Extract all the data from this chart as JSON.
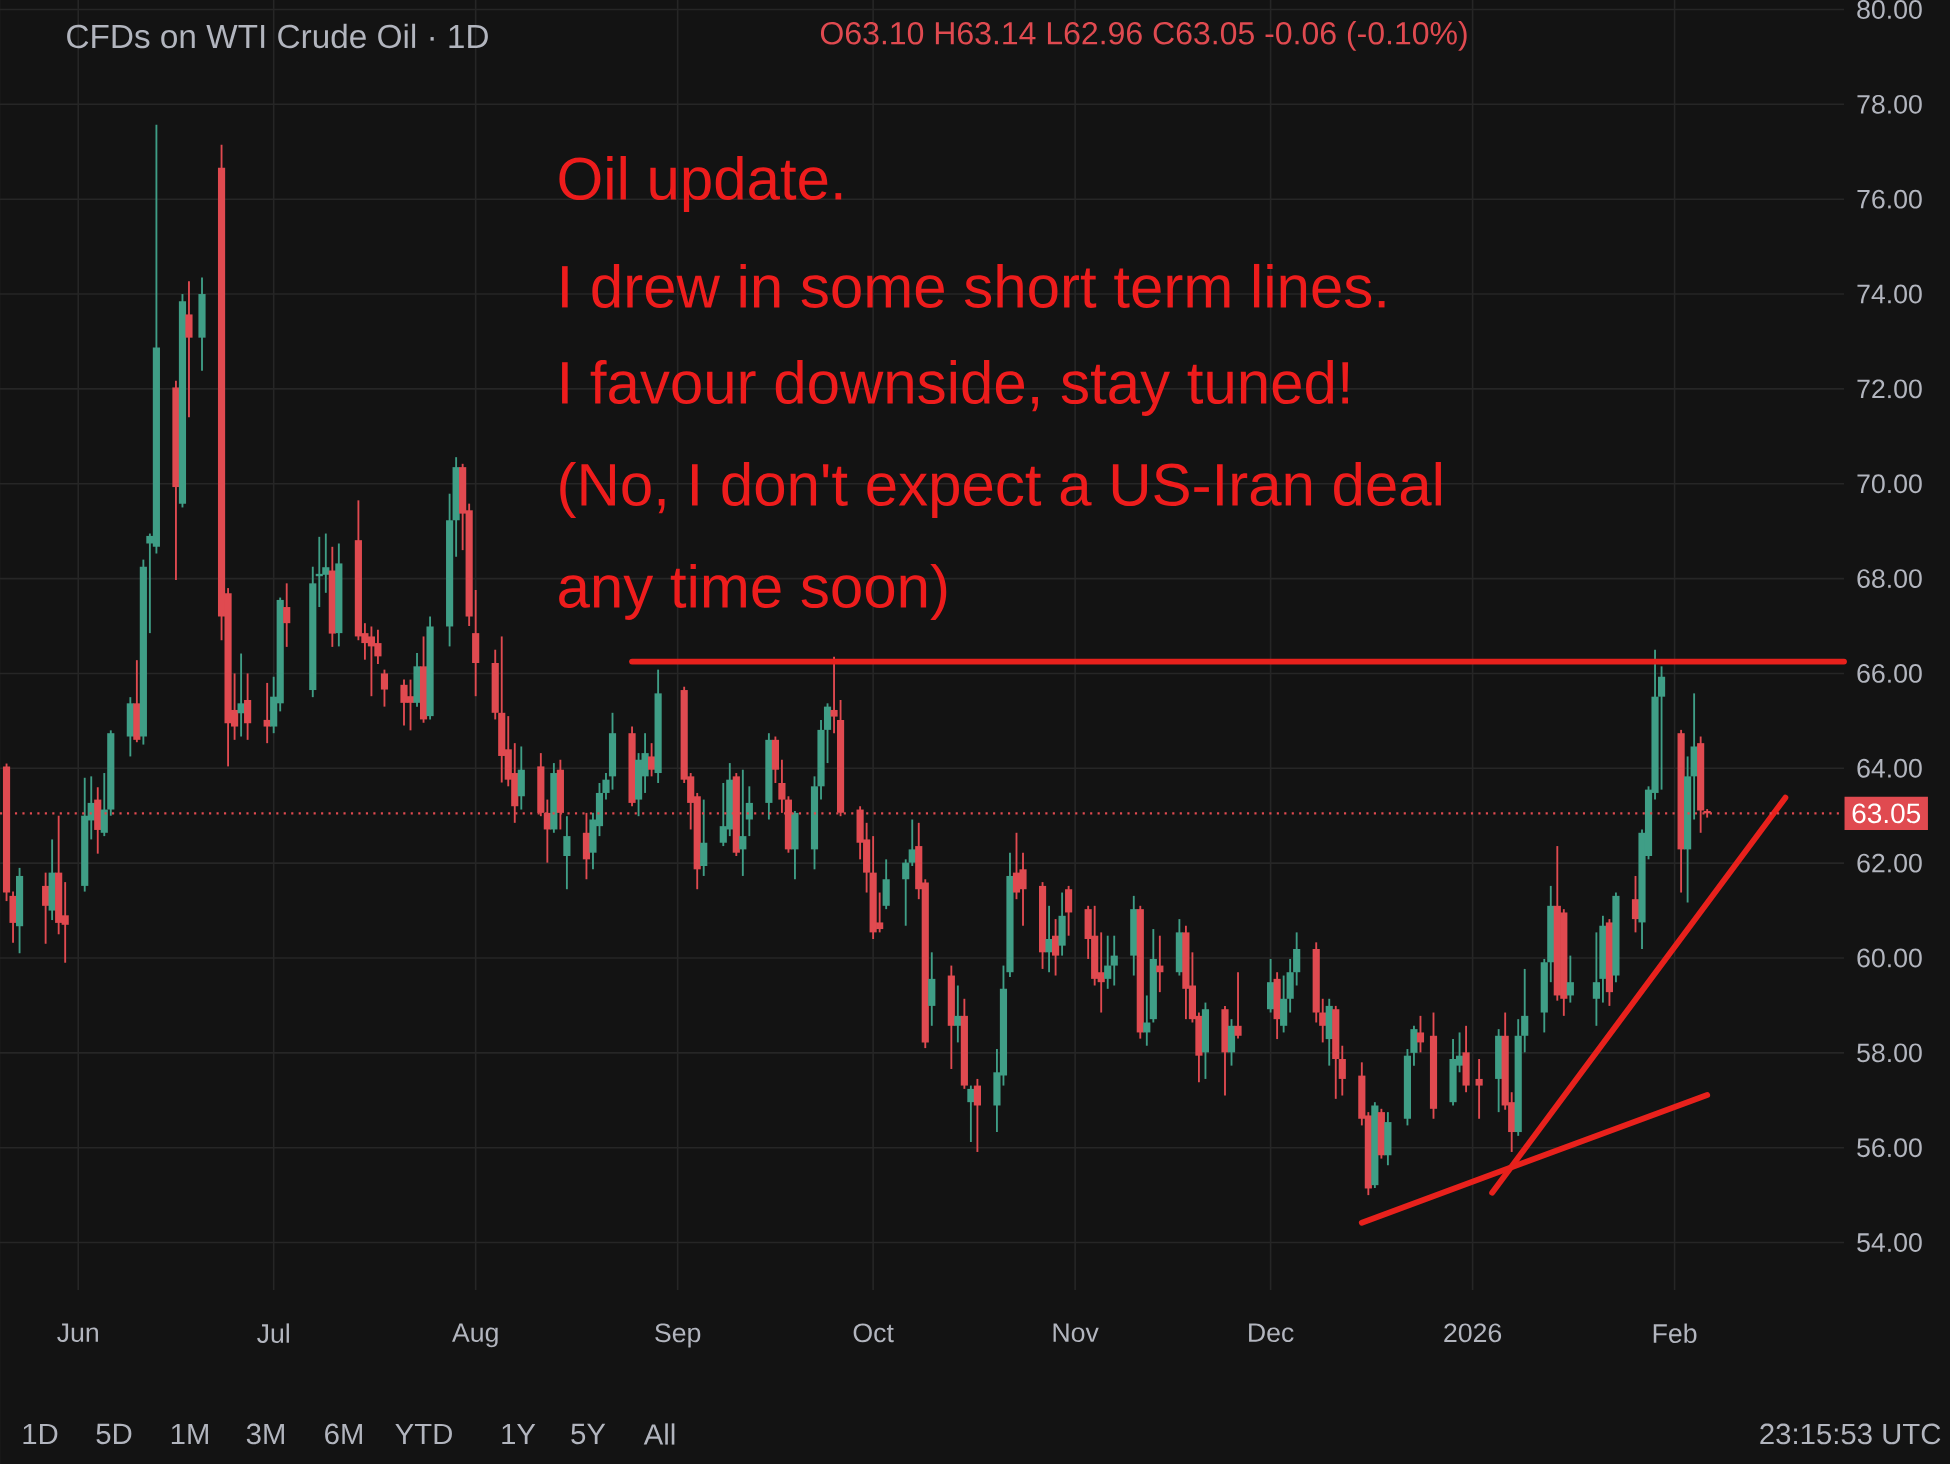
{
  "chart_data": {
    "type": "candlestick",
    "title": "CFDs on WTI Crude Oil · 1D",
    "subtitle": "O63.10 H63.14 L62.96 C63.05 -0.06 (-0.10%)",
    "annotations": [
      "Oil update.",
      "I drew in some short term lines.",
      "I favour downside, stay tuned!",
      "(No, I don't expect a US-Iran deal",
      "any time soon)",
      "1D",
      "5D",
      "1M",
      "3M",
      "6M",
      "YTD",
      "1Y",
      "5Y",
      "All",
      "23:15:53 UTC"
    ],
    "x": [
      "2025-05-21",
      "2025-05-22",
      "2025-05-23",
      "2025-05-27",
      "2025-05-28",
      "2025-05-29",
      "2025-05-30",
      "2025-06-02",
      "2025-06-03",
      "2025-06-04",
      "2025-06-05",
      "2025-06-06",
      "2025-06-09",
      "2025-06-10",
      "2025-06-11",
      "2025-06-12",
      "2025-06-13",
      "2025-06-16",
      "2025-06-17",
      "2025-06-18",
      "2025-06-20",
      "2025-06-23",
      "2025-06-24",
      "2025-06-25",
      "2025-06-26",
      "2025-06-27",
      "2025-06-30",
      "2025-07-01",
      "2025-07-02",
      "2025-07-03",
      "2025-07-07",
      "2025-07-08",
      "2025-07-09",
      "2025-07-10",
      "2025-07-11",
      "2025-07-14",
      "2025-07-15",
      "2025-07-16",
      "2025-07-17",
      "2025-07-18",
      "2025-07-21",
      "2025-07-22",
      "2025-07-23",
      "2025-07-24",
      "2025-07-25",
      "2025-07-28",
      "2025-07-29",
      "2025-07-30",
      "2025-07-31",
      "2025-08-01",
      "2025-08-04",
      "2025-08-05",
      "2025-08-06",
      "2025-08-07",
      "2025-08-08",
      "2025-08-11",
      "2025-08-12",
      "2025-08-13",
      "2025-08-14",
      "2025-08-15",
      "2025-08-18",
      "2025-08-19",
      "2025-08-20",
      "2025-08-21",
      "2025-08-22",
      "2025-08-25",
      "2025-08-26",
      "2025-08-27",
      "2025-08-28",
      "2025-08-29",
      "2025-09-02",
      "2025-09-03",
      "2025-09-04",
      "2025-09-05",
      "2025-09-08",
      "2025-09-09",
      "2025-09-10",
      "2025-09-11",
      "2025-09-12",
      "2025-09-15",
      "2025-09-16",
      "2025-09-17",
      "2025-09-18",
      "2025-09-19",
      "2025-09-22",
      "2025-09-23",
      "2025-09-24",
      "2025-09-25",
      "2025-09-26",
      "2025-09-29",
      "2025-09-30",
      "2025-10-01",
      "2025-10-02",
      "2025-10-03",
      "2025-10-06",
      "2025-10-07",
      "2025-10-08",
      "2025-10-09",
      "2025-10-10",
      "2025-10-13",
      "2025-10-14",
      "2025-10-15",
      "2025-10-16",
      "2025-10-17",
      "2025-10-20",
      "2025-10-21",
      "2025-10-22",
      "2025-10-23",
      "2025-10-24",
      "2025-10-27",
      "2025-10-28",
      "2025-10-29",
      "2025-10-30",
      "2025-10-31",
      "2025-11-03",
      "2025-11-04",
      "2025-11-05",
      "2025-11-06",
      "2025-11-07",
      "2025-11-10",
      "2025-11-11",
      "2025-11-12",
      "2025-11-13",
      "2025-11-14",
      "2025-11-17",
      "2025-11-18",
      "2025-11-19",
      "2025-11-20",
      "2025-11-21",
      "2025-11-24",
      "2025-11-25",
      "2025-11-26",
      "2025-12-01",
      "2025-12-02",
      "2025-12-03",
      "2025-12-04",
      "2025-12-05",
      "2025-12-08",
      "2025-12-09",
      "2025-12-10",
      "2025-12-11",
      "2025-12-12",
      "2025-12-15",
      "2025-12-16",
      "2025-12-17",
      "2025-12-18",
      "2025-12-19",
      "2025-12-22",
      "2025-12-23",
      "2025-12-24",
      "2025-12-26",
      "2025-12-29",
      "2025-12-30",
      "2025-12-31",
      "2026-01-02",
      "2026-01-05",
      "2026-01-06",
      "2026-01-07",
      "2026-01-08",
      "2026-01-09",
      "2026-01-12",
      "2026-01-13",
      "2026-01-14",
      "2026-01-15",
      "2026-01-16",
      "2026-01-20",
      "2026-01-21",
      "2026-01-22",
      "2026-01-23",
      "2026-01-26",
      "2026-01-27",
      "2026-01-28",
      "2026-01-29",
      "2026-01-30",
      "2026-02-02",
      "2026-02-03",
      "2026-02-04",
      "2026-02-05",
      "2026-02-06"
    ],
    "ohlc": [
      [
        64.04,
        64.1,
        61.2,
        61.38
      ],
      [
        61.31,
        61.4,
        60.32,
        60.74
      ],
      [
        60.67,
        61.9,
        60.1,
        61.73
      ],
      [
        61.52,
        61.8,
        60.3,
        61.1
      ],
      [
        61.0,
        62.5,
        60.8,
        61.8
      ],
      [
        61.8,
        63.0,
        60.5,
        60.74
      ],
      [
        60.9,
        61.6,
        59.9,
        60.7
      ],
      [
        61.52,
        63.8,
        61.4,
        63.0
      ],
      [
        62.9,
        63.83,
        62.5,
        63.27
      ],
      [
        63.34,
        63.6,
        62.2,
        62.7
      ],
      [
        62.64,
        63.9,
        62.57,
        63.13
      ],
      [
        63.13,
        64.8,
        63.0,
        64.74
      ],
      [
        64.67,
        65.5,
        64.25,
        65.37
      ],
      [
        65.37,
        66.28,
        64.55,
        64.6
      ],
      [
        64.67,
        68.4,
        64.5,
        68.25
      ],
      [
        68.74,
        68.95,
        66.85,
        68.9
      ],
      [
        68.67,
        77.57,
        68.53,
        72.87
      ],
      [
        72.03,
        72.17,
        67.97,
        69.93
      ],
      [
        69.58,
        74.0,
        69.5,
        73.85
      ],
      [
        73.57,
        74.27,
        71.4,
        73.08
      ],
      [
        73.08,
        74.35,
        72.38,
        74.0
      ],
      [
        76.66,
        77.15,
        66.7,
        67.2
      ],
      [
        67.69,
        67.8,
        64.04,
        64.95
      ],
      [
        65.23,
        66.0,
        64.6,
        64.88
      ],
      [
        65.16,
        66.42,
        64.67,
        65.37
      ],
      [
        65.44,
        66.0,
        64.6,
        64.95
      ],
      [
        65.02,
        65.8,
        64.53,
        64.88
      ],
      [
        64.88,
        65.93,
        64.74,
        65.51
      ],
      [
        65.37,
        67.6,
        65.2,
        67.55
      ],
      [
        67.4,
        67.9,
        66.56,
        67.06
      ],
      [
        65.65,
        68.25,
        65.5,
        67.9
      ],
      [
        68.05,
        68.88,
        67.4,
        68.1
      ],
      [
        68.08,
        68.95,
        67.7,
        68.24
      ],
      [
        68.17,
        68.67,
        66.56,
        66.84
      ],
      [
        66.85,
        68.74,
        66.57,
        68.32
      ],
      [
        68.81,
        69.65,
        66.7,
        66.78
      ],
      [
        66.85,
        67.06,
        66.29,
        66.64
      ],
      [
        66.78,
        66.99,
        65.52,
        66.57
      ],
      [
        66.64,
        66.92,
        66.2,
        66.36
      ],
      [
        66.0,
        66.08,
        65.3,
        65.66
      ],
      [
        65.76,
        65.87,
        64.9,
        65.38
      ],
      [
        65.52,
        65.87,
        64.8,
        65.38
      ],
      [
        65.38,
        66.43,
        65.3,
        66.15
      ],
      [
        66.15,
        66.78,
        64.96,
        65.03
      ],
      [
        65.1,
        67.2,
        65.03,
        66.99
      ],
      [
        66.99,
        69.79,
        66.57,
        69.23
      ],
      [
        69.23,
        70.56,
        68.46,
        70.35
      ],
      [
        70.35,
        70.42,
        68.6,
        69.37
      ],
      [
        69.44,
        69.58,
        67.0,
        67.2
      ],
      [
        66.85,
        67.76,
        65.52,
        66.22
      ],
      [
        66.22,
        66.5,
        65.03,
        65.17
      ],
      [
        65.17,
        66.78,
        63.7,
        64.26
      ],
      [
        64.4,
        65.1,
        63.62,
        63.76
      ],
      [
        63.9,
        64.53,
        62.85,
        63.2
      ],
      [
        63.41,
        64.46,
        63.13,
        63.97
      ],
      [
        64.04,
        64.32,
        62.99,
        63.06
      ],
      [
        63.06,
        63.34,
        62.01,
        62.71
      ],
      [
        62.71,
        64.11,
        62.64,
        63.9
      ],
      [
        63.97,
        64.18,
        62.71,
        63.06
      ],
      [
        62.15,
        62.99,
        61.45,
        62.57
      ],
      [
        62.64,
        63.06,
        61.66,
        62.08
      ],
      [
        62.22,
        63.06,
        61.87,
        62.92
      ],
      [
        62.78,
        63.69,
        62.57,
        63.48
      ],
      [
        63.48,
        63.9,
        63.34,
        63.76
      ],
      [
        63.83,
        65.17,
        63.55,
        64.74
      ],
      [
        64.74,
        64.88,
        63.2,
        63.27
      ],
      [
        63.34,
        64.32,
        62.99,
        64.18
      ],
      [
        63.83,
        64.74,
        63.48,
        64.32
      ],
      [
        64.25,
        64.53,
        63.83,
        63.97
      ],
      [
        63.9,
        66.08,
        63.69,
        65.58
      ],
      [
        65.65,
        65.72,
        63.69,
        63.76
      ],
      [
        63.83,
        63.9,
        62.71,
        63.27
      ],
      [
        63.41,
        63.48,
        61.45,
        61.87
      ],
      [
        61.94,
        63.34,
        61.73,
        62.43
      ],
      [
        62.43,
        63.69,
        62.36,
        62.78
      ],
      [
        62.71,
        64.11,
        62.57,
        63.76
      ],
      [
        63.83,
        63.9,
        62.15,
        62.22
      ],
      [
        62.29,
        63.97,
        61.73,
        62.57
      ],
      [
        62.92,
        63.62,
        62.57,
        63.27
      ],
      [
        63.27,
        64.74,
        62.92,
        64.6
      ],
      [
        64.6,
        64.67,
        63.69,
        63.97
      ],
      [
        63.69,
        64.18,
        63.06,
        63.34
      ],
      [
        63.34,
        63.41,
        62.22,
        62.29
      ],
      [
        62.29,
        63.1,
        61.66,
        63.06
      ],
      [
        62.29,
        63.83,
        61.87,
        63.62
      ],
      [
        63.62,
        65.02,
        63.34,
        64.81
      ],
      [
        64.81,
        65.37,
        64.11,
        65.3
      ],
      [
        65.23,
        66.35,
        64.74,
        65.09
      ],
      [
        65.02,
        65.44,
        62.99,
        63.06
      ],
      [
        63.13,
        63.2,
        62.08,
        62.43
      ],
      [
        62.5,
        62.85,
        61.38,
        61.8
      ],
      [
        61.8,
        62.57,
        60.4,
        60.54
      ],
      [
        60.75,
        61.38,
        60.54,
        60.61
      ],
      [
        61.1,
        62.08,
        61.03,
        61.66
      ],
      [
        61.66,
        62.08,
        60.68,
        62.01
      ],
      [
        62.01,
        62.92,
        61.94,
        62.29
      ],
      [
        62.36,
        62.85,
        61.24,
        61.45
      ],
      [
        61.59,
        61.66,
        58.1,
        58.22
      ],
      [
        58.99,
        60.12,
        58.57,
        59.56
      ],
      [
        59.63,
        59.84,
        57.66,
        58.57
      ],
      [
        58.57,
        59.42,
        58.22,
        58.78
      ],
      [
        58.78,
        59.14,
        57.24,
        57.31
      ],
      [
        56.96,
        57.31,
        56.12,
        57.24
      ],
      [
        57.31,
        57.45,
        55.91,
        56.89
      ],
      [
        56.89,
        58.08,
        56.33,
        57.59
      ],
      [
        57.52,
        59.84,
        57.31,
        59.35
      ],
      [
        59.7,
        62.22,
        59.6,
        61.73
      ],
      [
        61.8,
        62.64,
        61.24,
        61.38
      ],
      [
        61.87,
        62.22,
        60.68,
        61.45
      ],
      [
        61.52,
        61.6,
        59.77,
        60.12
      ],
      [
        60.12,
        61.1,
        59.7,
        60.4
      ],
      [
        60.47,
        60.82,
        59.63,
        60.05
      ],
      [
        60.26,
        61.38,
        60.05,
        60.89
      ],
      [
        61.45,
        61.52,
        60.47,
        60.96
      ],
      [
        61.03,
        61.1,
        59.98,
        60.4
      ],
      [
        60.47,
        61.1,
        59.42,
        59.56
      ],
      [
        59.7,
        60.54,
        58.85,
        59.49
      ],
      [
        59.56,
        60.47,
        59.35,
        59.84
      ],
      [
        59.84,
        60.47,
        59.42,
        60.05
      ],
      [
        60.05,
        61.31,
        59.63,
        61.03
      ],
      [
        61.03,
        61.1,
        58.3,
        58.43
      ],
      [
        58.43,
        59.21,
        58.15,
        58.64
      ],
      [
        58.71,
        60.61,
        58.64,
        59.98
      ],
      [
        59.84,
        60.47,
        59.28,
        59.7
      ],
      [
        59.7,
        60.82,
        59.63,
        60.54
      ],
      [
        60.54,
        60.68,
        58.71,
        59.35
      ],
      [
        59.42,
        60.12,
        58.64,
        58.71
      ],
      [
        58.78,
        58.85,
        57.38,
        57.94
      ],
      [
        58.01,
        59.06,
        57.45,
        58.92
      ],
      [
        58.92,
        58.99,
        57.1,
        58.01
      ],
      [
        58.01,
        58.71,
        57.73,
        58.57
      ],
      [
        58.57,
        59.7,
        58.3,
        58.36
      ],
      [
        58.92,
        59.98,
        58.85,
        59.49
      ],
      [
        59.56,
        59.7,
        58.29,
        58.71
      ],
      [
        58.57,
        59.63,
        58.43,
        59.14
      ],
      [
        59.14,
        59.98,
        58.85,
        59.7
      ],
      [
        59.7,
        60.54,
        59.42,
        60.19
      ],
      [
        60.19,
        60.33,
        58.64,
        58.85
      ],
      [
        58.85,
        59.14,
        58.22,
        58.57
      ],
      [
        58.29,
        59.14,
        57.73,
        58.99
      ],
      [
        58.92,
        58.99,
        57.03,
        57.87
      ],
      [
        57.87,
        58.15,
        57.1,
        57.45
      ],
      [
        57.52,
        57.8,
        56.47,
        56.61
      ],
      [
        56.68,
        56.75,
        55.0,
        55.14
      ],
      [
        55.21,
        56.96,
        55.15,
        56.89
      ],
      [
        56.75,
        56.82,
        55.77,
        55.84
      ],
      [
        55.84,
        56.75,
        55.63,
        56.54
      ],
      [
        56.61,
        58.08,
        56.47,
        57.94
      ],
      [
        58.0,
        58.57,
        57.73,
        58.5
      ],
      [
        58.43,
        58.78,
        58.01,
        58.22
      ],
      [
        58.36,
        58.85,
        56.61,
        56.82
      ],
      [
        56.96,
        58.29,
        56.89,
        57.87
      ],
      [
        57.73,
        58.43,
        57.59,
        57.94
      ],
      [
        58.01,
        58.57,
        57.17,
        57.31
      ],
      [
        57.45,
        57.87,
        56.61,
        57.31
      ],
      [
        57.45,
        58.5,
        56.75,
        58.36
      ],
      [
        58.36,
        58.85,
        56.8,
        56.89
      ],
      [
        56.96,
        57.17,
        55.91,
        56.33
      ],
      [
        56.33,
        58.71,
        56.25,
        58.36
      ],
      [
        58.36,
        59.77,
        58.01,
        58.78
      ],
      [
        58.85,
        59.98,
        58.43,
        59.91
      ],
      [
        59.91,
        61.52,
        59.49,
        61.1
      ],
      [
        61.1,
        62.36,
        59.1,
        59.21
      ],
      [
        60.96,
        61.03,
        58.78,
        59.14
      ],
      [
        59.21,
        60.05,
        59.06,
        59.49
      ],
      [
        59.14,
        60.54,
        58.57,
        59.49
      ],
      [
        59.56,
        60.89,
        59.06,
        60.68
      ],
      [
        60.75,
        60.82,
        58.99,
        59.28
      ],
      [
        59.63,
        61.38,
        59.49,
        61.31
      ],
      [
        61.24,
        61.73,
        60.54,
        60.82
      ],
      [
        60.75,
        62.71,
        60.19,
        62.64
      ],
      [
        62.15,
        63.62,
        62.08,
        63.55
      ],
      [
        63.48,
        66.5,
        63.34,
        65.51
      ],
      [
        65.51,
        66.15,
        63.55,
        65.93
      ],
      [
        64.74,
        64.81,
        61.38,
        62.29
      ],
      [
        62.29,
        64.25,
        61.17,
        63.83
      ],
      [
        63.83,
        65.58,
        62.92,
        64.46
      ],
      [
        64.53,
        64.67,
        62.64,
        63.11
      ],
      [
        63.1,
        63.14,
        62.96,
        63.05
      ]
    ],
    "colors": [
      "#e04a50",
      "#e04a50",
      "#3f9e86",
      "#e04a50",
      "#3f9e86",
      "#e04a50",
      "#e04a50",
      "#3f9e86",
      "#3f9e86",
      "#e04a50",
      "#3f9e86",
      "#3f9e86",
      "#3f9e86",
      "#e04a50",
      "#3f9e86",
      "#3f9e86",
      "#3f9e86",
      "#e04a50",
      "#3f9e86",
      "#e04a50",
      "#3f9e86",
      "#e04a50",
      "#e04a50",
      "#e04a50",
      "#3f9e86",
      "#e04a50",
      "#e04a50",
      "#3f9e86",
      "#3f9e86",
      "#e04a50",
      "#3f9e86",
      "#3f9e86",
      "#3f9e86",
      "#e04a50",
      "#3f9e86",
      "#e04a50",
      "#e04a50",
      "#e04a50",
      "#e04a50",
      "#e04a50",
      "#e04a50",
      "#e04a50",
      "#3f9e86",
      "#e04a50",
      "#3f9e86",
      "#3f9e86",
      "#3f9e86",
      "#e04a50",
      "#e04a50",
      "#e04a50",
      "#e04a50",
      "#e04a50",
      "#e04a50",
      "#e04a50",
      "#3f9e86",
      "#e04a50",
      "#e04a50",
      "#3f9e86",
      "#e04a50",
      "#3f9e86",
      "#e04a50",
      "#3f9e86",
      "#3f9e86",
      "#3f9e86",
      "#3f9e86",
      "#e04a50",
      "#3f9e86",
      "#3f9e86",
      "#e04a50",
      "#3f9e86",
      "#e04a50",
      "#e04a50",
      "#e04a50",
      "#3f9e86",
      "#3f9e86",
      "#3f9e86",
      "#e04a50",
      "#3f9e86",
      "#3f9e86",
      "#3f9e86",
      "#e04a50",
      "#e04a50",
      "#e04a50",
      "#3f9e86",
      "#3f9e86",
      "#3f9e86",
      "#3f9e86",
      "#e04a50",
      "#e04a50",
      "#e04a50",
      "#e04a50",
      "#e04a50",
      "#e04a50",
      "#3f9e86",
      "#3f9e86",
      "#3f9e86",
      "#e04a50",
      "#e04a50",
      "#3f9e86",
      "#e04a50",
      "#3f9e86",
      "#e04a50",
      "#3f9e86",
      "#e04a50",
      "#3f9e86",
      "#3f9e86",
      "#3f9e86",
      "#e04a50",
      "#e04a50",
      "#e04a50",
      "#3f9e86",
      "#e04a50",
      "#3f9e86",
      "#e04a50",
      "#e04a50",
      "#e04a50",
      "#e04a50",
      "#3f9e86",
      "#3f9e86",
      "#3f9e86",
      "#e04a50",
      "#3f9e86",
      "#3f9e86",
      "#e04a50",
      "#3f9e86",
      "#e04a50",
      "#e04a50",
      "#e04a50",
      "#3f9e86",
      "#e04a50",
      "#3f9e86",
      "#e04a50",
      "#3f9e86",
      "#e04a50",
      "#3f9e86",
      "#3f9e86",
      "#3f9e86",
      "#e04a50",
      "#e04a50",
      "#3f9e86",
      "#e04a50",
      "#e04a50",
      "#e04a50",
      "#e04a50",
      "#3f9e86",
      "#e04a50",
      "#3f9e86",
      "#3f9e86",
      "#3f9e86",
      "#e04a50",
      "#e04a50",
      "#3f9e86",
      "#3f9e86",
      "#e04a50",
      "#e04a50",
      "#3f9e86",
      "#e04a50",
      "#e04a50",
      "#3f9e86",
      "#3f9e86",
      "#3f9e86",
      "#3f9e86",
      "#e04a50",
      "#e04a50",
      "#3f9e86",
      "#3f9e86",
      "#3f9e86",
      "#e04a50",
      "#3f9e86",
      "#e04a50",
      "#3f9e86",
      "#3f9e86",
      "#3f9e86",
      "#3f9e86",
      "#e04a50",
      "#3f9e86",
      "#3f9e86",
      "#e04a50",
      "#e04a50"
    ],
    "series": [
      {
        "type": "line",
        "color": "#e8211c",
        "x": [
          "2025-08-25",
          "2026-02-27"
        ],
        "values": [
          66.25,
          66.25
        ]
      },
      {
        "type": "line",
        "color": "#e8211c",
        "x": [
          "2026-01-04",
          "2026-02-18"
        ],
        "values": [
          55.05,
          63.38
        ]
      },
      {
        "type": "line",
        "color": "#e8211c",
        "x": [
          "2025-12-15",
          "2026-02-06"
        ],
        "values": [
          54.42,
          57.11
        ]
      }
    ],
    "ref_lines": [
      {
        "axis": "y",
        "value": 63.05,
        "label": "63.05",
        "color": "#e04a50",
        "line_style": "dotted"
      }
    ],
    "xlim": [
      "2025-05-20",
      "2026-02-27"
    ],
    "ylim": [
      53.0,
      80.2
    ],
    "xticks": [
      {
        "value": "2025-06-01",
        "label": "Jun"
      },
      {
        "value": "2025-07-01",
        "label": "Jul"
      },
      {
        "value": "2025-08-01",
        "label": "Aug"
      },
      {
        "value": "2025-09-01",
        "label": "Sep"
      },
      {
        "value": "2025-10-01",
        "label": "Oct"
      },
      {
        "value": "2025-11-01",
        "label": "Nov"
      },
      {
        "value": "2025-12-01",
        "label": "Dec"
      },
      {
        "value": "2026-01-01",
        "label": "2026"
      },
      {
        "value": "2026-02-01",
        "label": "Feb"
      }
    ],
    "yticks": [
      {
        "value": 54,
        "label": "54.00"
      },
      {
        "value": 56,
        "label": "56.00"
      },
      {
        "value": 58,
        "label": "58.00"
      },
      {
        "value": 60,
        "label": "60.00"
      },
      {
        "value": 62,
        "label": "62.00"
      },
      {
        "value": 64,
        "label": "64.00"
      },
      {
        "value": 66,
        "label": "66.00"
      },
      {
        "value": 68,
        "label": "68.00"
      },
      {
        "value": 70,
        "label": "70.00"
      },
      {
        "value": 72,
        "label": "72.00"
      },
      {
        "value": 74,
        "label": "74.00"
      },
      {
        "value": 76,
        "label": "76.00"
      },
      {
        "value": 78,
        "label": "78.00"
      },
      {
        "value": 80,
        "label": "80.00"
      }
    ],
    "grid": true
  }
}
